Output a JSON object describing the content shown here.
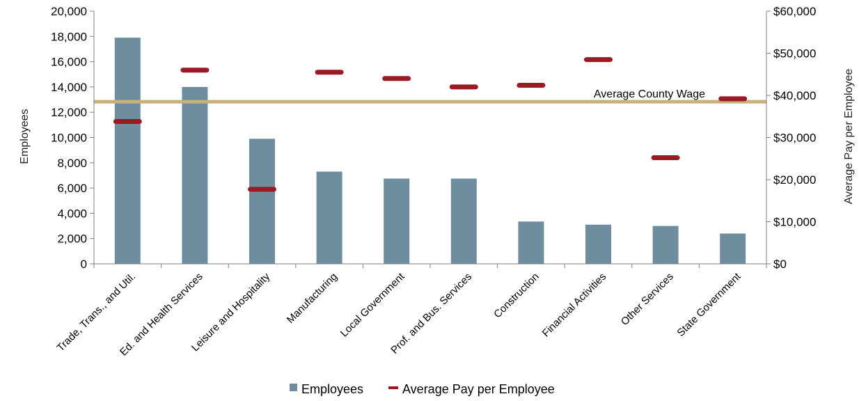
{
  "chart_data": {
    "type": "bar",
    "categories": [
      "Trade, Trans., and Util.",
      "Ed. and Health Services",
      "Leisure and Hospitality",
      "Manufacturing",
      "Local Government",
      "Prof. and Bus. Services",
      "Construction",
      "Financial Activities",
      "Other Services",
      "State Government"
    ],
    "series": [
      {
        "name": "Employees",
        "kind": "bar",
        "axis": "left",
        "color": "#6e8ea0",
        "values": [
          17900,
          14000,
          9900,
          7300,
          6750,
          6750,
          3350,
          3100,
          3000,
          2400
        ]
      },
      {
        "name": "Average Pay per Employee",
        "kind": "marker",
        "axis": "right",
        "color": "#9b1b24",
        "values": [
          33800,
          46000,
          17700,
          45500,
          44000,
          42000,
          42400,
          48500,
          25200,
          39200
        ]
      }
    ],
    "reference_line": {
      "label": "Average County Wage",
      "value": 38500,
      "axis": "right",
      "color": "#c8b07a"
    },
    "ylabel": "Employees",
    "y2label": "Average Pay per Employee",
    "ylim": [
      0,
      20000
    ],
    "y2lim": [
      0,
      60000
    ],
    "yticks": [
      "0",
      "2,000",
      "4,000",
      "6,000",
      "8,000",
      "10,000",
      "12,000",
      "14,000",
      "16,000",
      "18,000",
      "20,000"
    ],
    "y2ticks": [
      "$0",
      "$10,000",
      "$20,000",
      "$30,000",
      "$40,000",
      "$50,000",
      "$60,000"
    ],
    "grid": false,
    "legend": "bottom"
  }
}
